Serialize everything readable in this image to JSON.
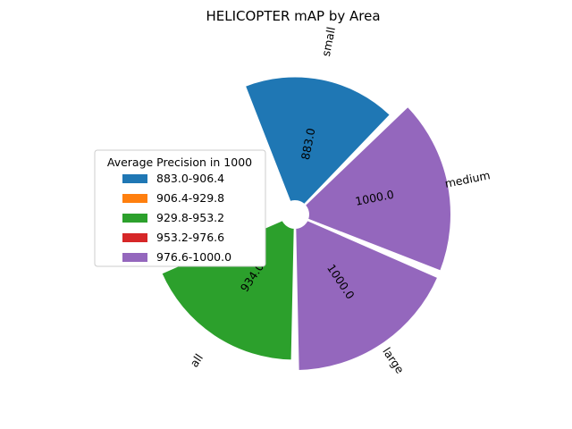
{
  "chart_data": {
    "type": "pie",
    "title": "HELICOPTER mAP by Area",
    "categories": [
      "small",
      "medium",
      "large",
      "all"
    ],
    "values": [
      883.0,
      1000.0,
      1000.0,
      934.0
    ],
    "value_labels": [
      "883.0",
      "1000.0",
      "1000.0",
      "934.0"
    ],
    "rmax": 1000,
    "start_angle_deg": -112.5,
    "sector_span_deg": 67.5,
    "legend": {
      "title": "Average Precision in 1000",
      "placement": "center-left",
      "entries": [
        {
          "label": "883.0-906.4",
          "color": "#1f77b4"
        },
        {
          "label": "906.4-929.8",
          "color": "#ff7f0e"
        },
        {
          "label": "929.8-953.2",
          "color": "#2ca02c"
        },
        {
          "label": "953.2-976.6",
          "color": "#d62728"
        },
        {
          "label": "976.6-1000.0",
          "color": "#9467bd"
        }
      ]
    },
    "slice_colors": [
      "#1f77b4",
      "#9467bd",
      "#9467bd",
      "#2ca02c"
    ]
  }
}
